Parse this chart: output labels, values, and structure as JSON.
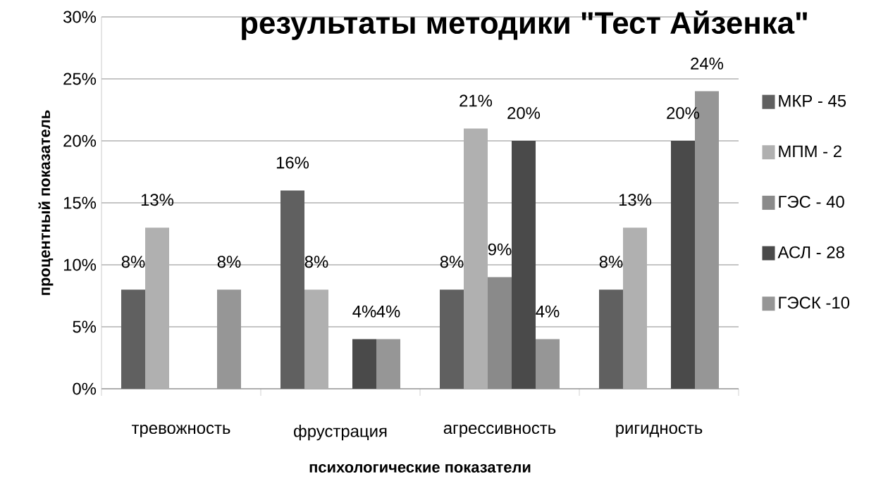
{
  "chart_data": {
    "type": "bar",
    "title": "результаты методики \"Тест Айзенка\"",
    "xlabel": "психологические показатели",
    "ylabel": "процентный показатель",
    "categories": [
      "тревожность",
      "фрустрация",
      "агрессивность",
      "ригидность"
    ],
    "series": [
      {
        "name": "МКР - 45",
        "color": "#606060",
        "values": [
          8,
          16,
          8,
          8
        ],
        "value_labels": [
          "8%",
          "16%",
          "8%",
          "8%"
        ]
      },
      {
        "name": "МПМ - 2",
        "color": "#b0b0b0",
        "values": [
          13,
          8,
          21,
          13
        ],
        "value_labels": [
          "13%",
          "8%",
          "21%",
          "13%"
        ]
      },
      {
        "name": "ГЭС - 40",
        "color": "#8a8a8a",
        "values": [
          null,
          null,
          9,
          null
        ],
        "value_labels": [
          null,
          null,
          "9%",
          null
        ]
      },
      {
        "name": "АСЛ - 28",
        "color": "#4a4a4a",
        "values": [
          null,
          4,
          20,
          20
        ],
        "value_labels": [
          null,
          "4%",
          "20%",
          "20%"
        ]
      },
      {
        "name": "ГЭСК -10",
        "color": "#969696",
        "values": [
          8,
          4,
          4,
          24
        ],
        "value_labels": [
          "8%",
          "4%",
          "4%",
          "24%"
        ]
      }
    ],
    "ylim": [
      0,
      30
    ],
    "yticks": [
      {
        "value": 0,
        "label": "0%"
      },
      {
        "value": 5,
        "label": "5%"
      },
      {
        "value": 10,
        "label": "10%"
      },
      {
        "value": 15,
        "label": "15%"
      },
      {
        "value": 20,
        "label": "20%"
      },
      {
        "value": 25,
        "label": "25%"
      },
      {
        "value": 30,
        "label": "30%"
      }
    ],
    "grid": "y",
    "legend": "right"
  }
}
